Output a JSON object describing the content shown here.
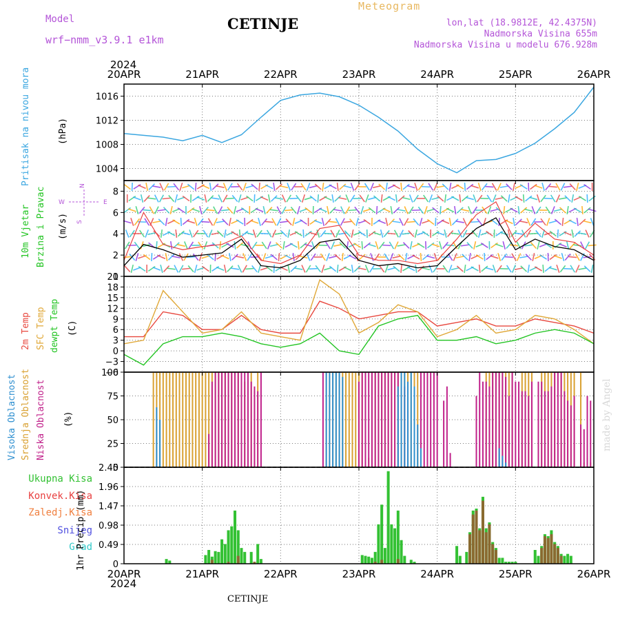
{
  "header": {
    "model_label": "Model",
    "model_name": "wrf−nmm_v3.9.1 e1km",
    "station": "CETINJE",
    "meteogram": "Meteogram",
    "lonlat": "lon,lat (18.9812E, 42.4375N)",
    "altitude": "Nadmorska Visina 655m",
    "model_altitude": "Nadmorska Visina u modelu 676.928m",
    "year_top": "2024",
    "year_bottom": "2024",
    "footer_station": "CETINJE",
    "credit": "made by Angel"
  },
  "colors": {
    "purple_text": "#b455d8",
    "title_orange": "#e8b860",
    "pressure": "#3aa6e0",
    "temp2m": "#e8483f",
    "sfc_temp": "#e0a838",
    "dewpt": "#22c422",
    "high_cloud": "#2e8fd0",
    "mid_cloud": "#d9a030",
    "low_cloud": "#c0208a",
    "total_precip": "#33c133",
    "conv_precip": "#e84040",
    "frz_precip": "#f08040",
    "snow": "#5050e0",
    "hail": "#30c8c8",
    "wind_line": "#000000",
    "wind_gust": "#e84040"
  },
  "x_axis": {
    "labels": [
      "20APR",
      "21APR",
      "22APR",
      "23APR",
      "24APR",
      "25APR",
      "26APR"
    ]
  },
  "chart_data": [
    {
      "panel": "pressure",
      "type": "line",
      "ylabel_name": "Pritisak na nivou mora",
      "ylabel_unit": "(hPa)",
      "ylim": [
        1002,
        1018
      ],
      "yticks": [
        "1004",
        "1008",
        "1012",
        "1016"
      ],
      "ytick_values": [
        1004,
        1008,
        1012,
        1016
      ],
      "x_hours": [
        0,
        6,
        12,
        18,
        24,
        30,
        36,
        42,
        48,
        54,
        60,
        66,
        72,
        78,
        84,
        90,
        96,
        102,
        108,
        114,
        120,
        126,
        132,
        138,
        144
      ],
      "values": [
        1009.8,
        1009.5,
        1009.2,
        1008.6,
        1009.5,
        1008.3,
        1009.6,
        1012.5,
        1015.3,
        1016.2,
        1016.5,
        1015.9,
        1014.5,
        1012.5,
        1010.2,
        1007.2,
        1004.8,
        1003.3,
        1005.3,
        1005.5,
        1006.5,
        1008.2,
        1010.6,
        1013.3,
        1017.5
      ]
    },
    {
      "panel": "wind",
      "type": "line",
      "ylabel_name": "10m Vjetar",
      "ylabel_name2": "Brzina i Pravac",
      "ylabel_unit": "(m/s)",
      "compass": {
        "n": "N",
        "s": "S",
        "w": "W",
        "e": "E"
      },
      "ylim": [
        0,
        9
      ],
      "yticks": [
        "0",
        "2",
        "4",
        "6",
        "8"
      ],
      "ytick_values": [
        0,
        2,
        4,
        6,
        8
      ],
      "x_hours": [
        0,
        6,
        12,
        18,
        24,
        30,
        36,
        42,
        48,
        54,
        60,
        66,
        72,
        78,
        84,
        90,
        96,
        102,
        108,
        114,
        120,
        126,
        132,
        138,
        144
      ],
      "series": [
        {
          "name": "speed",
          "values": [
            1.0,
            3.0,
            2.5,
            1.8,
            2.0,
            2.2,
            3.5,
            1.0,
            0.8,
            1.5,
            3.2,
            3.5,
            1.5,
            1.0,
            1.2,
            0.8,
            1.0,
            2.8,
            4.5,
            5.5,
            2.5,
            3.5,
            2.8,
            2.5,
            1.5
          ]
        },
        {
          "name": "gust",
          "values": [
            1.5,
            6.0,
            3.0,
            2.5,
            2.8,
            3.0,
            3.8,
            1.5,
            1.2,
            2.0,
            4.5,
            4.8,
            2.0,
            1.5,
            1.5,
            1.2,
            1.5,
            3.5,
            5.8,
            7.0,
            3.2,
            5.0,
            3.5,
            3.2,
            2.0
          ]
        }
      ]
    },
    {
      "panel": "temperature",
      "type": "line",
      "ylabel_names": [
        "2m Temp",
        "SFC Temp",
        "dewpt Temp"
      ],
      "ylabel_unit": "(C)",
      "ylim": [
        -6,
        21
      ],
      "yticks": [
        "−6",
        "−3",
        "0",
        "3",
        "6",
        "9",
        "12",
        "15",
        "18",
        "21"
      ],
      "ytick_values": [
        -6,
        -3,
        0,
        3,
        6,
        9,
        12,
        15,
        18,
        21
      ],
      "x_hours": [
        0,
        6,
        12,
        18,
        24,
        30,
        36,
        42,
        48,
        54,
        60,
        66,
        72,
        78,
        84,
        90,
        96,
        102,
        108,
        114,
        120,
        126,
        132,
        138,
        144
      ],
      "series": [
        {
          "name": "2m Temp",
          "values": [
            4,
            4,
            11,
            10,
            6,
            6,
            10,
            6,
            5,
            5,
            14,
            12,
            9,
            10,
            11,
            11,
            7,
            8,
            9,
            7,
            7,
            9,
            8,
            7,
            5
          ]
        },
        {
          "name": "SFC Temp",
          "values": [
            2,
            3,
            17,
            11,
            5,
            6,
            11,
            5,
            4,
            3,
            20,
            16,
            5,
            8,
            13,
            11,
            4,
            6,
            10,
            5,
            6,
            10,
            9,
            6,
            2
          ]
        },
        {
          "name": "dewpt Temp",
          "values": [
            -1,
            -4,
            2,
            4,
            4,
            5,
            4,
            2,
            1,
            2,
            5,
            0,
            -1,
            7,
            9,
            10,
            3,
            3,
            4,
            2,
            3,
            5,
            6,
            5,
            2
          ]
        }
      ]
    },
    {
      "panel": "clouds",
      "type": "bar",
      "ylabel_names": [
        "Visoka Oblacnost",
        "Srednja Oblacnost",
        "Niska Oblacnost"
      ],
      "ylabel_unit": "(%)",
      "ylim": [
        0,
        100
      ],
      "yticks": [
        "0",
        "25",
        "50",
        "75",
        "100"
      ],
      "ytick_values": [
        0,
        25,
        50,
        75,
        100
      ],
      "series": [
        {
          "name": "Srednja Oblacnost",
          "hours": [
            9,
            10,
            11,
            12,
            13,
            14,
            15,
            16,
            17,
            18,
            19,
            20,
            21,
            22,
            23,
            24,
            25,
            26,
            27,
            28,
            29,
            30,
            31,
            32,
            33,
            34,
            35,
            36,
            37,
            38,
            39,
            40,
            41,
            62,
            63,
            64,
            65,
            66,
            67,
            68,
            69,
            70,
            71,
            72,
            73,
            74,
            75,
            76,
            77,
            78,
            79,
            80,
            81,
            82,
            83,
            84,
            85,
            86,
            87,
            88,
            89,
            90,
            91,
            111,
            112,
            113,
            114,
            115,
            116,
            117,
            118,
            119,
            121,
            122,
            123,
            124,
            125,
            128,
            129,
            130,
            131,
            132,
            134,
            135,
            136,
            137,
            138,
            140,
            141,
            142,
            143
          ],
          "values": [
            100,
            100,
            100,
            100,
            100,
            100,
            100,
            100,
            100,
            100,
            100,
            100,
            100,
            100,
            100,
            100,
            100,
            100,
            100,
            100,
            100,
            100,
            100,
            100,
            100,
            100,
            100,
            100,
            90,
            100,
            100,
            80,
            100,
            100,
            100,
            100,
            100,
            100,
            100,
            100,
            100,
            100,
            100,
            100,
            100,
            100,
            10,
            100,
            100,
            100,
            100,
            100,
            100,
            100,
            100,
            100,
            100,
            100,
            100,
            100,
            100,
            100,
            10,
            100,
            100,
            100,
            100,
            100,
            100,
            100,
            100,
            100,
            10,
            100,
            100,
            100,
            100,
            100,
            100,
            100,
            100,
            100,
            100,
            100,
            100,
            100,
            100,
            100,
            5,
            10,
            5
          ]
        },
        {
          "name": "Niska Oblacnost",
          "hours": [
            26,
            27,
            28,
            29,
            30,
            31,
            32,
            33,
            34,
            35,
            36,
            37,
            38,
            39,
            40,
            41,
            42,
            61,
            72,
            73,
            74,
            75,
            76,
            77,
            78,
            79,
            80,
            81,
            82,
            83,
            84,
            86,
            87,
            91,
            92,
            93,
            94,
            95,
            96,
            98,
            99,
            100,
            108,
            109,
            110,
            111,
            112,
            113,
            114,
            115,
            116,
            117,
            118,
            119,
            120,
            121,
            122,
            123,
            124,
            125,
            127,
            128,
            129,
            130,
            131,
            132,
            133,
            134,
            135,
            136,
            137,
            138,
            140,
            141,
            142,
            143
          ],
          "values": [
            35,
            90,
            100,
            100,
            100,
            100,
            100,
            100,
            100,
            100,
            100,
            100,
            100,
            90,
            85,
            80,
            100,
            100,
            90,
            100,
            100,
            100,
            100,
            100,
            100,
            100,
            100,
            100,
            100,
            100,
            100,
            85,
            60,
            100,
            100,
            100,
            100,
            100,
            100,
            70,
            85,
            15,
            75,
            100,
            90,
            90,
            85,
            100,
            100,
            100,
            100,
            95,
            75,
            100,
            90,
            90,
            80,
            80,
            75,
            90,
            90,
            90,
            80,
            80,
            85,
            100,
            100,
            100,
            80,
            70,
            65,
            75,
            45,
            40,
            75,
            70
          ]
        },
        {
          "name": "Visoka Oblacnost",
          "hours": [
            10,
            11,
            62,
            63,
            64,
            65,
            66,
            67,
            84,
            85,
            86,
            87,
            88,
            89,
            90,
            91,
            115,
            116,
            117
          ],
          "values": [
            63,
            50,
            100,
            100,
            100,
            100,
            100,
            95,
            85,
            100,
            100,
            90,
            100,
            85,
            45,
            20,
            20,
            12,
            5
          ]
        }
      ]
    },
    {
      "panel": "precipitation",
      "type": "bar",
      "legend": [
        "Ukupna Kisa",
        "Konvek.Kisa",
        "Zaledj.Kisa",
        "Snijeg",
        "Grad"
      ],
      "ylabel_unit": "1hr Precip (mm)",
      "ylim": [
        0,
        2.45
      ],
      "yticks": [
        "0",
        "0.49",
        "0.98",
        "1.47",
        "1.96",
        "2.45"
      ],
      "ytick_values": [
        0,
        0.49,
        0.98,
        1.47,
        1.96,
        2.45
      ],
      "series": [
        {
          "name": "Ukupna Kisa",
          "hours": [
            13,
            14,
            25,
            26,
            27,
            28,
            29,
            30,
            31,
            32,
            33,
            34,
            35,
            36,
            37,
            39,
            41,
            42,
            73,
            74,
            75,
            76,
            77,
            78,
            79,
            80,
            81,
            82,
            83,
            84,
            85,
            86,
            88,
            89,
            102,
            103,
            105,
            106,
            107,
            108,
            109,
            110,
            111,
            112,
            113,
            114,
            115,
            116,
            117,
            118,
            119,
            120,
            126,
            127,
            128,
            129,
            130,
            131,
            132,
            133,
            134,
            135,
            136,
            137
          ],
          "values": [
            0.12,
            0.08,
            0.22,
            0.35,
            0.18,
            0.32,
            0.3,
            0.62,
            0.5,
            0.85,
            0.95,
            1.35,
            0.85,
            0.4,
            0.3,
            0.3,
            0.5,
            0.12,
            0.22,
            0.2,
            0.18,
            0.15,
            0.3,
            1.0,
            1.5,
            0.4,
            2.35,
            1.0,
            0.9,
            1.35,
            0.6,
            0.2,
            0.1,
            0.05,
            0.45,
            0.2,
            0.3,
            0.8,
            1.35,
            1.4,
            0.9,
            1.7,
            0.9,
            1.05,
            0.55,
            0.4,
            0.15,
            0.15,
            0.05,
            0.05,
            0.05,
            0.05,
            0.35,
            0.2,
            0.45,
            0.75,
            0.7,
            0.85,
            0.55,
            0.45,
            0.25,
            0.2,
            0.25,
            0.2
          ]
        },
        {
          "name": "Konvek.Kisa",
          "hours": [
            27,
            32,
            35,
            40,
            77,
            79,
            84,
            106,
            107,
            108,
            109,
            110,
            111,
            112,
            113,
            114,
            128,
            129,
            130,
            131,
            132,
            133,
            134
          ],
          "values": [
            0.1,
            0.05,
            0.2,
            0.05,
            0.05,
            0.1,
            0.12,
            0.75,
            1.25,
            1.35,
            0.85,
            1.6,
            0.8,
            1.0,
            0.5,
            0.35,
            0.4,
            0.7,
            0.65,
            0.75,
            0.5,
            0.4,
            0.2
          ]
        }
      ]
    }
  ]
}
